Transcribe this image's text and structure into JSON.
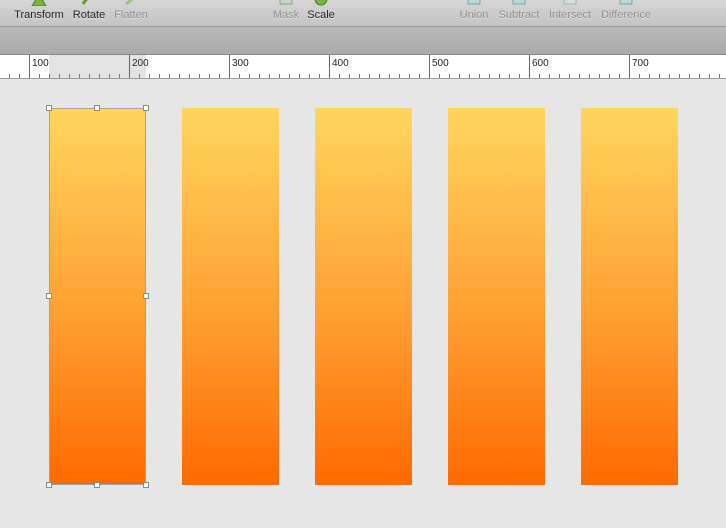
{
  "toolbar": {
    "transform_label": "Transform",
    "rotate_label": "Rotate",
    "flatten_label": "Flatten",
    "mask_label": "Mask",
    "scale_label": "Scale",
    "union_label": "Union",
    "subtract_label": "Subtract",
    "intersect_label": "Intersect",
    "difference_label": "Difference"
  },
  "ruler": {
    "labels": [
      "100",
      "200",
      "300",
      "400",
      "500",
      "600",
      "700"
    ]
  },
  "canvas": {
    "shape_count": 5,
    "selected_shape_index": 0,
    "gradient_colors": [
      "#ffd65c",
      "#ff9a2e",
      "#ff6a00"
    ]
  },
  "icons": {
    "transform": "transform-icon",
    "rotate": "rotate-icon",
    "flatten": "flatten-icon",
    "mask": "mask-icon",
    "scale": "scale-icon",
    "union": "union-icon",
    "subtract": "subtract-icon",
    "intersect": "intersect-icon",
    "difference": "difference-icon"
  }
}
